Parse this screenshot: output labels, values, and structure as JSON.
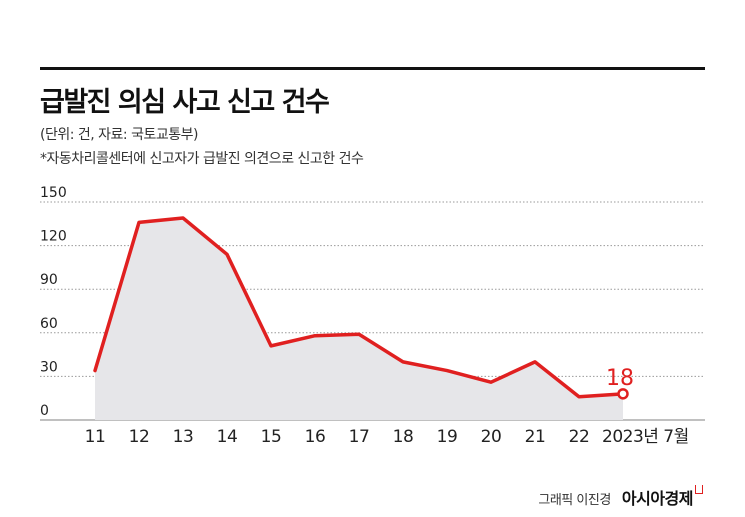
{
  "title": "급발진 의심 사고 신고 건수",
  "subtitle": "(단위: 건, 자료: 국토교통부)",
  "note": "*자동차리콜센터에 신고자가 급발진 의견으로 신고한 건수",
  "credit": {
    "author": "그래픽 이진경",
    "brand": "아시아경제"
  },
  "colors": {
    "line": "#e02020",
    "area": "#e6e6e9",
    "grid": "#9a9a9a",
    "text": "#222222"
  },
  "chart_data": {
    "type": "area",
    "categories": [
      "11",
      "12",
      "13",
      "14",
      "15",
      "16",
      "17",
      "18",
      "19",
      "20",
      "21",
      "22",
      "2023년 7월"
    ],
    "values": [
      34,
      136,
      139,
      114,
      51,
      58,
      59,
      40,
      34,
      26,
      40,
      16,
      18
    ],
    "last_value_label": "18",
    "y_ticks": [
      "150",
      "120",
      "90",
      "60",
      "30",
      "0"
    ],
    "ylim": [
      0,
      150
    ],
    "grid": true,
    "legend": "none"
  }
}
